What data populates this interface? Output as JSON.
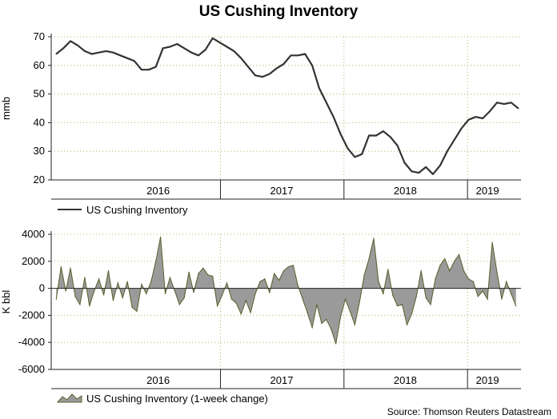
{
  "chart_data": [
    {
      "type": "line",
      "title": "US Cushing Inventory",
      "ylabel": "mmb",
      "ylim": [
        20,
        70
      ],
      "yticks": [
        20,
        30,
        40,
        50,
        60,
        70
      ],
      "x_axis_labels": [
        "2016",
        "2017",
        "2018",
        "2019"
      ],
      "grid": "dotted",
      "legend_placement": "below",
      "series": [
        {
          "name": "US Cushing Inventory",
          "color": "#333333",
          "points": [
            [
              "2015-09-04",
              64
            ],
            [
              "2015-09-25",
              66
            ],
            [
              "2015-10-16",
              68.5
            ],
            [
              "2015-11-06",
              67
            ],
            [
              "2015-11-27",
              65
            ],
            [
              "2015-12-18",
              64
            ],
            [
              "2016-01-08",
              64.5
            ],
            [
              "2016-01-29",
              65
            ],
            [
              "2016-02-19",
              64.5
            ],
            [
              "2016-03-11",
              63.5
            ],
            [
              "2016-04-01",
              62.5
            ],
            [
              "2016-04-22",
              61.5
            ],
            [
              "2016-05-13",
              58.5
            ],
            [
              "2016-06-03",
              58.5
            ],
            [
              "2016-06-24",
              59.5
            ],
            [
              "2016-07-15",
              66
            ],
            [
              "2016-08-05",
              66.5
            ],
            [
              "2016-08-26",
              67.5
            ],
            [
              "2016-09-16",
              66
            ],
            [
              "2016-10-07",
              64.5
            ],
            [
              "2016-10-28",
              63.5
            ],
            [
              "2016-11-18",
              65.5
            ],
            [
              "2016-12-09",
              69.5
            ],
            [
              "2016-12-30",
              68
            ],
            [
              "2017-01-20",
              66.5
            ],
            [
              "2017-02-10",
              65
            ],
            [
              "2017-03-03",
              62.5
            ],
            [
              "2017-03-24",
              59.5
            ],
            [
              "2017-04-14",
              56.5
            ],
            [
              "2017-05-05",
              56
            ],
            [
              "2017-05-26",
              57
            ],
            [
              "2017-06-16",
              59
            ],
            [
              "2017-07-07",
              60.5
            ],
            [
              "2017-07-28",
              63.5
            ],
            [
              "2017-08-18",
              63.5
            ],
            [
              "2017-09-08",
              64
            ],
            [
              "2017-09-29",
              60
            ],
            [
              "2017-10-20",
              52
            ],
            [
              "2017-11-10",
              47
            ],
            [
              "2017-12-01",
              42
            ],
            [
              "2017-12-22",
              36
            ],
            [
              "2018-01-12",
              31
            ],
            [
              "2018-02-02",
              28
            ],
            [
              "2018-02-23",
              29
            ],
            [
              "2018-03-16",
              35.5
            ],
            [
              "2018-04-06",
              35.5
            ],
            [
              "2018-04-27",
              37
            ],
            [
              "2018-05-18",
              35
            ],
            [
              "2018-06-08",
              32
            ],
            [
              "2018-06-29",
              26
            ],
            [
              "2018-07-20",
              23
            ],
            [
              "2018-08-10",
              22.5
            ],
            [
              "2018-08-31",
              24.5
            ],
            [
              "2018-09-21",
              22
            ],
            [
              "2018-10-12",
              25
            ],
            [
              "2018-11-02",
              30
            ],
            [
              "2018-11-23",
              34
            ],
            [
              "2018-12-14",
              38
            ],
            [
              "2019-01-04",
              41
            ],
            [
              "2019-01-25",
              42
            ],
            [
              "2019-02-15",
              41.5
            ],
            [
              "2019-03-08",
              44
            ],
            [
              "2019-03-29",
              47
            ],
            [
              "2019-04-19",
              46.5
            ],
            [
              "2019-05-10",
              47
            ],
            [
              "2019-05-31",
              45
            ]
          ]
        }
      ]
    },
    {
      "type": "area",
      "ylabel": "K bbl",
      "ylim": [
        -6000,
        4000
      ],
      "yticks": [
        -6000,
        -4000,
        -2000,
        0,
        2000,
        4000
      ],
      "x_axis_labels": [
        "2016",
        "2017",
        "2018",
        "2019"
      ],
      "grid": "dotted",
      "legend_placement": "below",
      "series": [
        {
          "name": "US Cushing Inventory (1-week change)",
          "fill": "#9a9a9a",
          "stroke": "#55602a",
          "points": [
            [
              "2015-09-04",
              -800
            ],
            [
              "2015-09-18",
              1600
            ],
            [
              "2015-10-02",
              -200
            ],
            [
              "2015-10-16",
              1500
            ],
            [
              "2015-10-30",
              -600
            ],
            [
              "2015-11-13",
              -1200
            ],
            [
              "2015-11-27",
              800
            ],
            [
              "2015-12-11",
              -1300
            ],
            [
              "2015-12-25",
              -200
            ],
            [
              "2016-01-08",
              700
            ],
            [
              "2016-01-22",
              -500
            ],
            [
              "2016-02-05",
              1300
            ],
            [
              "2016-02-19",
              -900
            ],
            [
              "2016-03-04",
              400
            ],
            [
              "2016-03-18",
              -700
            ],
            [
              "2016-04-01",
              500
            ],
            [
              "2016-04-15",
              -1400
            ],
            [
              "2016-04-29",
              -1700
            ],
            [
              "2016-05-13",
              300
            ],
            [
              "2016-05-27",
              -400
            ],
            [
              "2016-06-10",
              500
            ],
            [
              "2016-06-24",
              2000
            ],
            [
              "2016-07-08",
              3800
            ],
            [
              "2016-07-22",
              -400
            ],
            [
              "2016-08-05",
              800
            ],
            [
              "2016-08-19",
              -200
            ],
            [
              "2016-09-02",
              -1200
            ],
            [
              "2016-09-16",
              -700
            ],
            [
              "2016-09-30",
              1200
            ],
            [
              "2016-10-14",
              -300
            ],
            [
              "2016-10-28",
              1100
            ],
            [
              "2016-11-11",
              1500
            ],
            [
              "2016-11-25",
              1000
            ],
            [
              "2016-12-09",
              900
            ],
            [
              "2016-12-23",
              -1300
            ],
            [
              "2017-01-06",
              -500
            ],
            [
              "2017-01-20",
              400
            ],
            [
              "2017-02-03",
              -800
            ],
            [
              "2017-02-17",
              -1100
            ],
            [
              "2017-03-03",
              -1900
            ],
            [
              "2017-03-17",
              -900
            ],
            [
              "2017-03-31",
              -1800
            ],
            [
              "2017-04-14",
              -400
            ],
            [
              "2017-04-28",
              500
            ],
            [
              "2017-05-12",
              700
            ],
            [
              "2017-05-26",
              -300
            ],
            [
              "2017-06-09",
              1100
            ],
            [
              "2017-06-23",
              600
            ],
            [
              "2017-07-07",
              1300
            ],
            [
              "2017-07-21",
              1600
            ],
            [
              "2017-08-04",
              1700
            ],
            [
              "2017-08-18",
              200
            ],
            [
              "2017-09-01",
              -800
            ],
            [
              "2017-09-15",
              -1800
            ],
            [
              "2017-09-29",
              -2900
            ],
            [
              "2017-10-13",
              -1200
            ],
            [
              "2017-10-27",
              -2600
            ],
            [
              "2017-11-10",
              -2300
            ],
            [
              "2017-11-24",
              -3000
            ],
            [
              "2017-12-08",
              -4100
            ],
            [
              "2017-12-22",
              -2100
            ],
            [
              "2018-01-05",
              -800
            ],
            [
              "2018-01-19",
              -1700
            ],
            [
              "2018-02-02",
              -2700
            ],
            [
              "2018-02-16",
              -1000
            ],
            [
              "2018-03-02",
              1000
            ],
            [
              "2018-03-16",
              2200
            ],
            [
              "2018-03-30",
              3700
            ],
            [
              "2018-04-13",
              500
            ],
            [
              "2018-04-27",
              -400
            ],
            [
              "2018-05-11",
              1400
            ],
            [
              "2018-05-25",
              -500
            ],
            [
              "2018-06-08",
              -1300
            ],
            [
              "2018-06-22",
              -1200
            ],
            [
              "2018-07-06",
              -2700
            ],
            [
              "2018-07-20",
              -1900
            ],
            [
              "2018-08-03",
              -600
            ],
            [
              "2018-08-17",
              1300
            ],
            [
              "2018-08-31",
              -700
            ],
            [
              "2018-09-14",
              -1200
            ],
            [
              "2018-09-28",
              700
            ],
            [
              "2018-10-12",
              1700
            ],
            [
              "2018-10-26",
              2200
            ],
            [
              "2018-11-09",
              1300
            ],
            [
              "2018-11-23",
              2000
            ],
            [
              "2018-12-07",
              2500
            ],
            [
              "2018-12-21",
              1300
            ],
            [
              "2019-01-04",
              700
            ],
            [
              "2019-01-18",
              500
            ],
            [
              "2019-02-01",
              -600
            ],
            [
              "2019-02-15",
              -200
            ],
            [
              "2019-03-01",
              -800
            ],
            [
              "2019-03-15",
              3400
            ],
            [
              "2019-03-29",
              1200
            ],
            [
              "2019-04-12",
              -800
            ],
            [
              "2019-04-26",
              500
            ],
            [
              "2019-05-10",
              -400
            ],
            [
              "2019-05-24",
              -1300
            ]
          ]
        }
      ]
    }
  ],
  "source_note": "Source: Thomson Reuters Datastream"
}
